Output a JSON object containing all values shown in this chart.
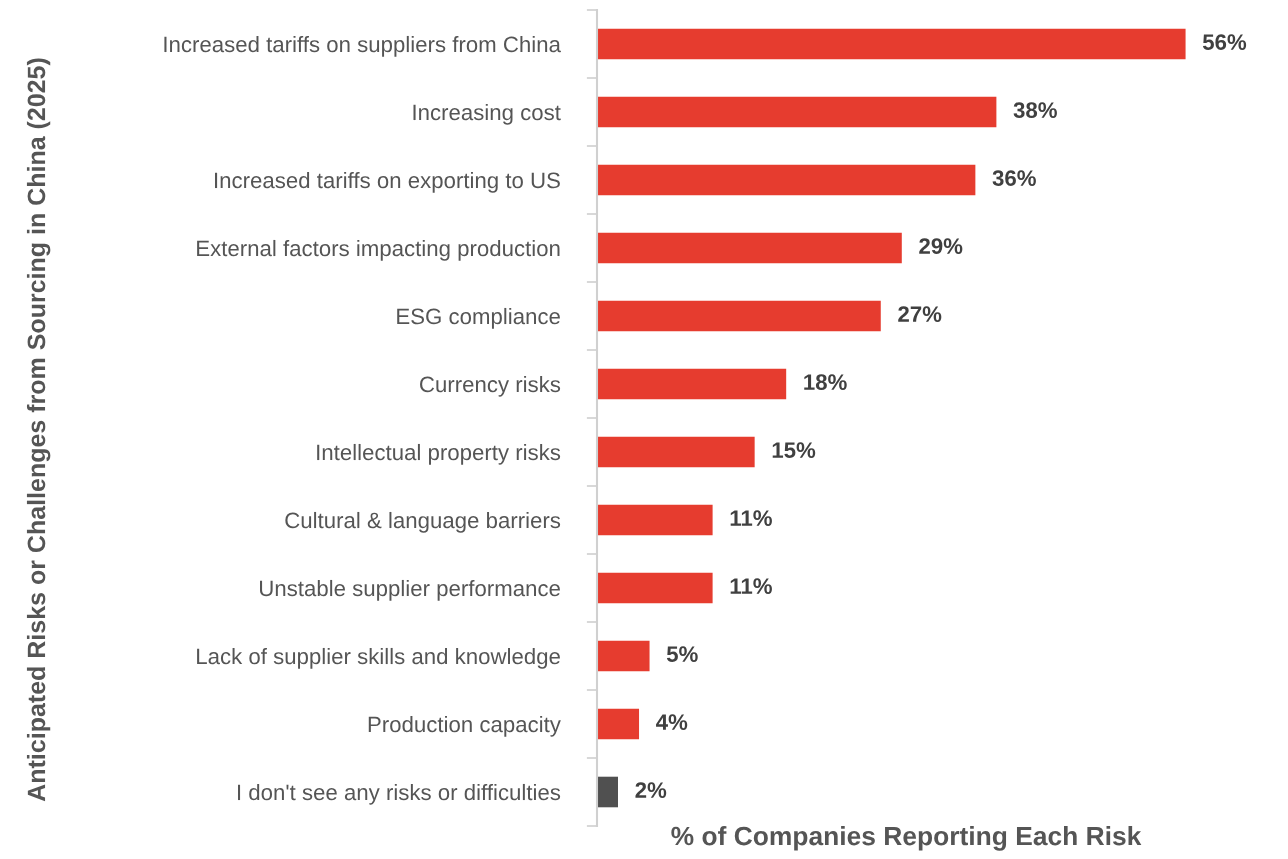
{
  "chart_data": {
    "type": "bar",
    "orientation": "horizontal",
    "xlabel": "% of Companies Reporting Each Risk",
    "ylabel": "Anticipated Risks or Challenges from Sourcing in China (2025)",
    "categories": [
      "Increased tariffs on suppliers from China",
      "Increasing cost",
      "Increased tariffs on exporting to US",
      "External factors impacting production",
      "ESG compliance",
      "Currency risks",
      "Intellectual property risks",
      "Cultural & language barriers",
      "Unstable supplier performance",
      "Lack of supplier skills and knowledge",
      "Production capacity",
      "I don't see any risks or difficulties"
    ],
    "values": [
      56,
      38,
      36,
      29,
      27,
      18,
      15,
      11,
      11,
      5,
      4,
      2
    ],
    "value_labels": [
      "56%",
      "38%",
      "36%",
      "29%",
      "27%",
      "18%",
      "15%",
      "11%",
      "11%",
      "5%",
      "4%",
      "2%"
    ],
    "colors": [
      "#e63c2f",
      "#e63c2f",
      "#e63c2f",
      "#e63c2f",
      "#e63c2f",
      "#e63c2f",
      "#e63c2f",
      "#e63c2f",
      "#e63c2f",
      "#e63c2f",
      "#e63c2f",
      "#505050"
    ],
    "tick_labels": "y",
    "grid": false,
    "legend": false
  }
}
